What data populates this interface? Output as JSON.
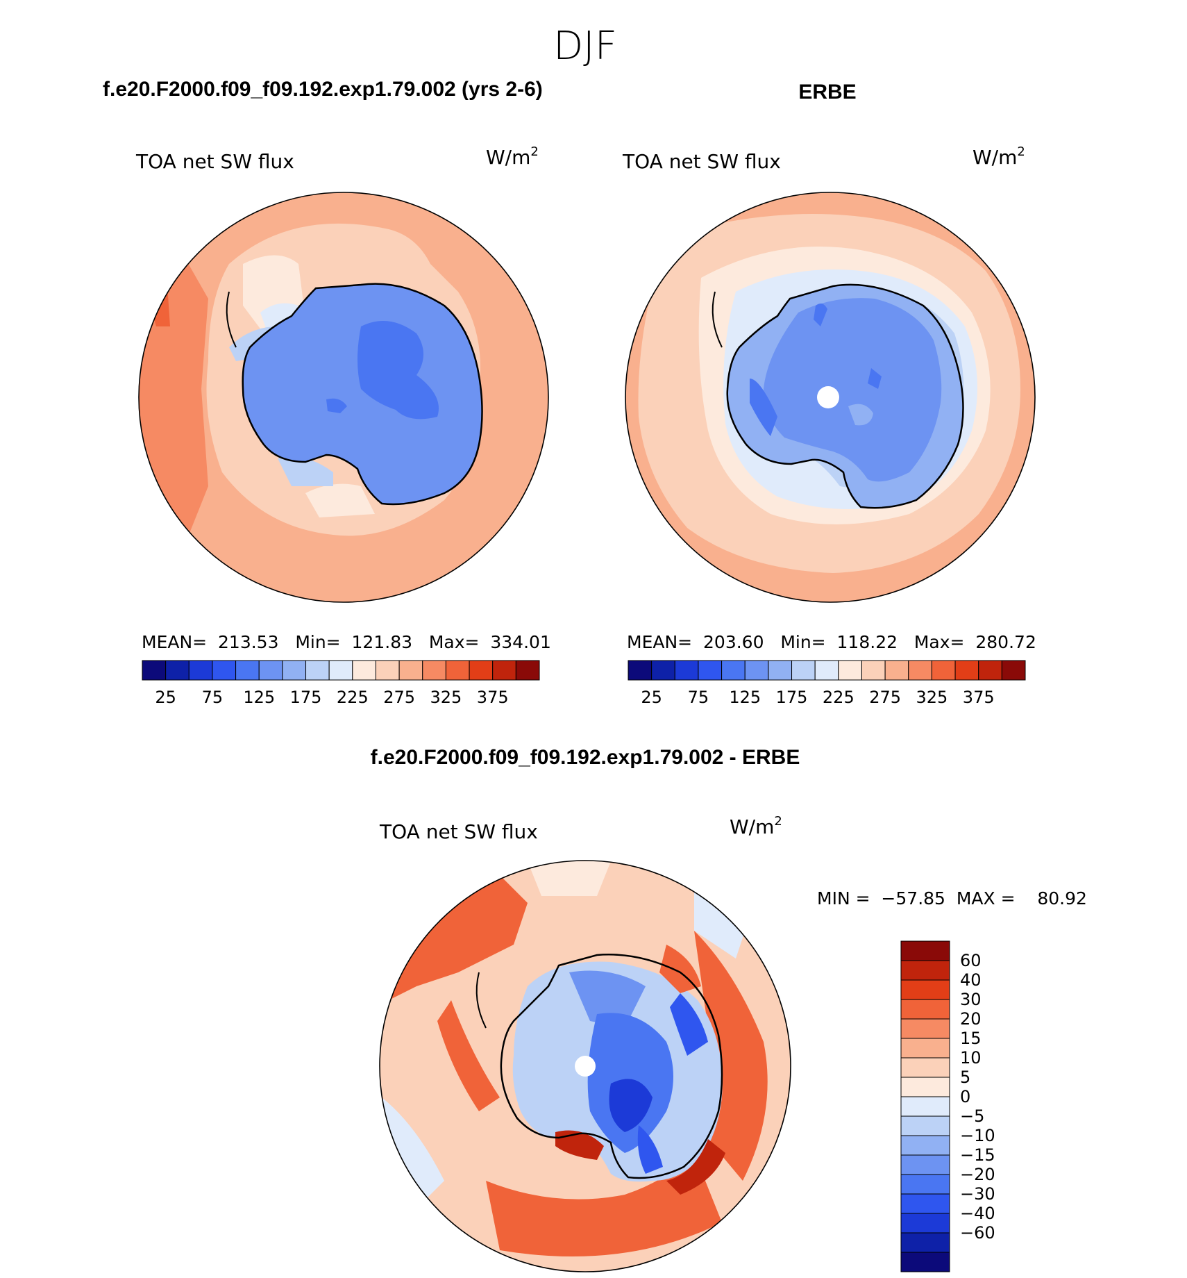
{
  "season_title": "DJF",
  "chart_data": [
    {
      "type": "heatmap",
      "projection": "south-polar-stereographic",
      "title": "f.e20.F2000.f09_f09.192.exp1.79.002 (yrs 2-6)",
      "variable": "TOA net SW flux",
      "units_base": "W/m",
      "units_exp": "2",
      "stats_text": "MEAN=  213.53   Min=  121.83   Max=  334.01",
      "stats": {
        "mean": 213.53,
        "min": 121.83,
        "max": 334.01
      },
      "colorbar": {
        "orientation": "horizontal",
        "levels": [
          25,
          50,
          75,
          100,
          125,
          150,
          175,
          200,
          225,
          250,
          275,
          300,
          325,
          350,
          375
        ],
        "tick_labels": [
          "25",
          "75",
          "125",
          "175",
          "225",
          "275",
          "325",
          "375"
        ],
        "colors": [
          "#0c0a7a",
          "#0e21a8",
          "#1c3ad7",
          "#2f56ef",
          "#4a76f2",
          "#6d93f2",
          "#91b1f3",
          "#bcd2f6",
          "#e0ebfb",
          "#fdeadd",
          "#fbd1b9",
          "#f9b08e",
          "#f68a63",
          "#f06339",
          "#e23e17",
          "#c0240c",
          "#8a0a08"
        ]
      }
    },
    {
      "type": "heatmap",
      "projection": "south-polar-stereographic",
      "title": "ERBE",
      "variable": "TOA net SW flux",
      "units_base": "W/m",
      "units_exp": "2",
      "stats_text": "MEAN=  203.60   Min=  118.22   Max=  280.72",
      "stats": {
        "mean": 203.6,
        "min": 118.22,
        "max": 280.72
      },
      "colorbar": {
        "orientation": "horizontal",
        "levels": [
          25,
          50,
          75,
          100,
          125,
          150,
          175,
          200,
          225,
          250,
          275,
          300,
          325,
          350,
          375
        ],
        "tick_labels": [
          "25",
          "75",
          "125",
          "175",
          "225",
          "275",
          "325",
          "375"
        ],
        "colors": [
          "#0c0a7a",
          "#0e21a8",
          "#1c3ad7",
          "#2f56ef",
          "#4a76f2",
          "#6d93f2",
          "#91b1f3",
          "#bcd2f6",
          "#e0ebfb",
          "#fdeadd",
          "#fbd1b9",
          "#f9b08e",
          "#f68a63",
          "#f06339",
          "#e23e17",
          "#c0240c",
          "#8a0a08"
        ]
      }
    },
    {
      "type": "heatmap",
      "projection": "south-polar-stereographic",
      "title": "f.e20.F2000.f09_f09.192.exp1.79.002 - ERBE",
      "variable": "TOA net SW flux",
      "units_base": "W/m",
      "units_exp": "2",
      "stats_text": "MIN =  −57.85  MAX =    80.92",
      "stats": {
        "min": -57.85,
        "max": 80.92
      },
      "colorbar": {
        "orientation": "vertical",
        "levels": [
          -60,
          -40,
          -30,
          -20,
          -15,
          -10,
          -5,
          0,
          5,
          10,
          15,
          20,
          30,
          40,
          60
        ],
        "tick_labels": [
          "60",
          "40",
          "30",
          "20",
          "15",
          "10",
          "5",
          "0",
          "−5",
          "−10",
          "−15",
          "−20",
          "−30",
          "−40",
          "−60"
        ],
        "colors": [
          "#0c0a7a",
          "#0e21a8",
          "#1c3ad7",
          "#2f56ef",
          "#4a76f2",
          "#6d93f2",
          "#91b1f3",
          "#bcd2f6",
          "#e0ebfb",
          "#fdeadd",
          "#fbd1b9",
          "#f9b08e",
          "#f68a63",
          "#f06339",
          "#e23e17",
          "#c0240c",
          "#8a0a08"
        ]
      }
    }
  ]
}
